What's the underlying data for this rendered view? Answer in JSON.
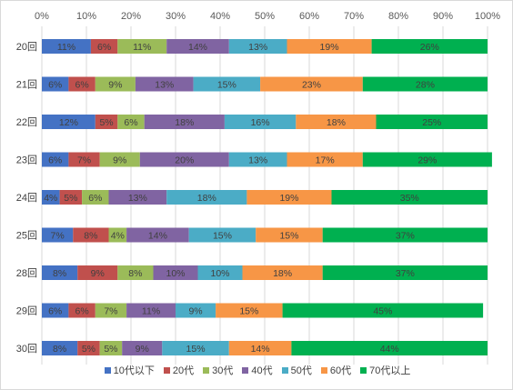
{
  "chart_data": {
    "type": "bar",
    "orientation": "horizontal",
    "stacked": "percent",
    "categories": [
      "20回",
      "21回",
      "22回",
      "23回",
      "24回",
      "25回",
      "28回",
      "29回",
      "30回"
    ],
    "xlim": [
      0,
      100
    ],
    "xticks": [
      "0%",
      "10%",
      "20%",
      "30%",
      "40%",
      "50%",
      "60%",
      "70%",
      "80%",
      "90%",
      "100%"
    ],
    "grid": true,
    "legend": "bottom",
    "series": [
      {
        "name": "10代以下",
        "color": "#4472C4",
        "values": [
          11,
          6,
          12,
          6,
          4,
          7,
          8,
          6,
          8
        ]
      },
      {
        "name": "20代",
        "color": "#C0504D",
        "values": [
          6,
          6,
          5,
          7,
          5,
          8,
          9,
          6,
          5
        ]
      },
      {
        "name": "30代",
        "color": "#9BBB59",
        "values": [
          11,
          9,
          6,
          9,
          6,
          4,
          8,
          7,
          5
        ]
      },
      {
        "name": "40代",
        "color": "#8064A2",
        "values": [
          14,
          13,
          18,
          20,
          13,
          14,
          10,
          11,
          9
        ]
      },
      {
        "name": "50代",
        "color": "#4BACC6",
        "values": [
          13,
          15,
          16,
          13,
          18,
          15,
          10,
          9,
          15
        ]
      },
      {
        "name": "60代",
        "color": "#F79646",
        "values": [
          19,
          23,
          18,
          17,
          19,
          15,
          18,
          15,
          14
        ]
      },
      {
        "name": "70代以上",
        "color": "#00B050",
        "values": [
          26,
          28,
          25,
          29,
          35,
          37,
          37,
          45,
          44
        ]
      }
    ]
  }
}
